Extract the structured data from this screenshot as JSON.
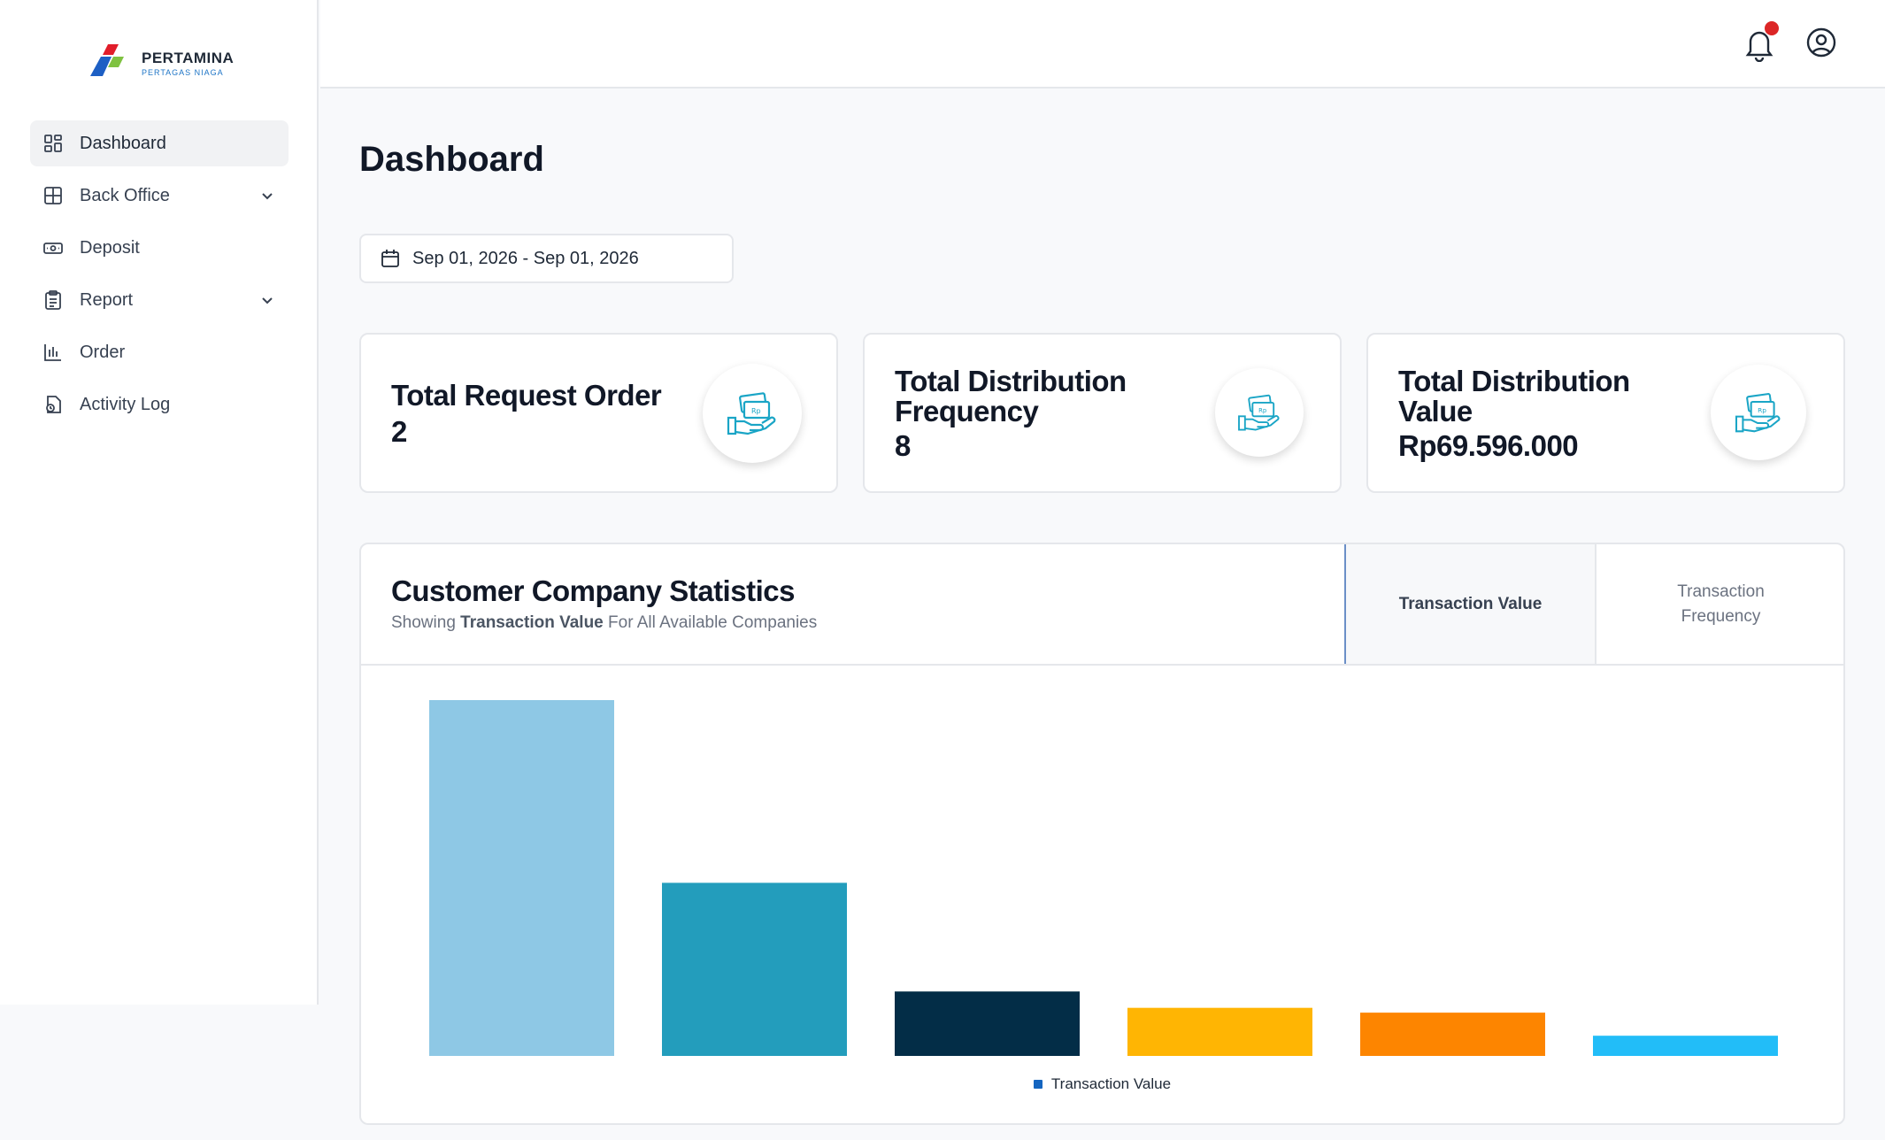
{
  "brand": {
    "name": "PERTAMINA",
    "sub": "PERTAGAS NIAGA"
  },
  "sidebar": {
    "items": [
      {
        "label": "Dashboard",
        "icon": "dashboard-grid-icon",
        "active": true
      },
      {
        "label": "Back Office",
        "icon": "table-grid-icon",
        "expandable": true
      },
      {
        "label": "Deposit",
        "icon": "cash-icon"
      },
      {
        "label": "Report",
        "icon": "clipboard-icon",
        "expandable": true
      },
      {
        "label": "Order",
        "icon": "bar-chart-icon"
      },
      {
        "label": "Activity Log",
        "icon": "file-clock-icon"
      }
    ]
  },
  "header": {
    "has_notification": true
  },
  "page": {
    "title": "Dashboard"
  },
  "date_range": "Sep 01, 2026 - Sep 01, 2026",
  "cards": [
    {
      "label": "Total Request Order",
      "value": "2"
    },
    {
      "label": "Total Distribution Frequency",
      "value": "8"
    },
    {
      "label": "Total Distribution Value",
      "value": "Rp69.596.000"
    }
  ],
  "stats": {
    "title": "Customer Company Statistics",
    "sub_prefix": "Showing",
    "sub_bold": "Transaction Value",
    "sub_suffix": "For All Available Companies",
    "tabs": [
      {
        "label": "Transaction Value",
        "active": true
      },
      {
        "label": "Transaction Frequency",
        "active": false
      }
    ]
  },
  "chart_data": {
    "type": "bar",
    "series": [
      {
        "name": "Transaction Value",
        "values": [
          37,
          18,
          6.7,
          5,
          4.5,
          2.1
        ]
      }
    ],
    "colors": [
      "#8ec8e5",
      "#239dbc",
      "#032d47",
      "#ffb503",
      "#fd8500",
      "#22bdf8"
    ],
    "legend_color": "#1565c0",
    "legend": "bottom",
    "grid": false,
    "ylim": [
      0,
      37
    ]
  }
}
